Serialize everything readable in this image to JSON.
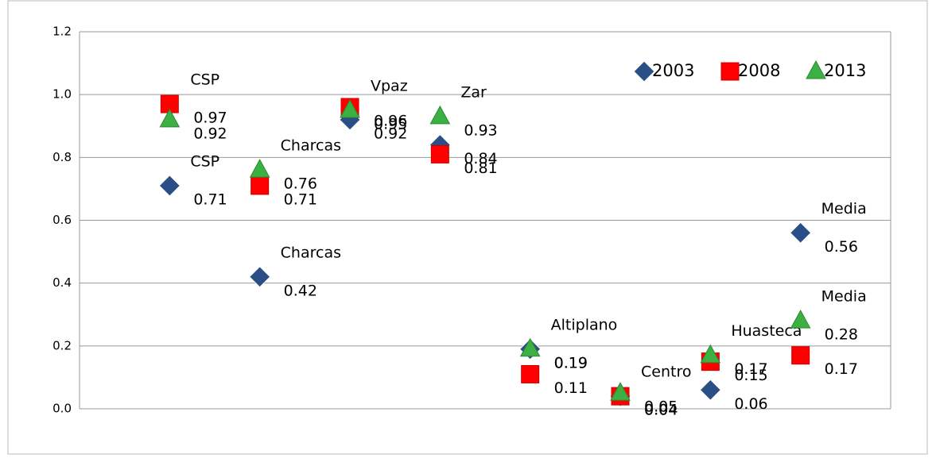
{
  "chart_data": {
    "type": "scatter",
    "categories": [
      null,
      null,
      null,
      null,
      null,
      null,
      null,
      null
    ],
    "ylim": [
      0,
      1.2
    ],
    "yticks": [
      {
        "value": 0,
        "label": "0.0"
      },
      0.2,
      0.4,
      0.6,
      0.8,
      {
        "value": 1,
        "label": "1.0"
      },
      1.2
    ],
    "grid": true,
    "legend": "top-right",
    "series": [
      {
        "name": "2003",
        "color": "#2a4e86",
        "marker": "diamond",
        "values": [
          0.71,
          0.42,
          0.92,
          0.84,
          0.19,
          0.04,
          0.06,
          0.56
        ],
        "labels": [
          "CSP",
          "Charcas",
          null,
          null,
          "Altiplano",
          "Centro",
          null,
          "Media"
        ]
      },
      {
        "name": "2008",
        "color": "#ff0000",
        "marker": "square",
        "values": [
          0.97,
          0.71,
          0.96,
          0.81,
          0.11,
          0.04,
          0.15,
          0.17
        ],
        "labels": [
          "CSP",
          null,
          null,
          null,
          null,
          null,
          null,
          null
        ]
      },
      {
        "name": "2013",
        "color": "#3cb043",
        "marker": "triangle",
        "values": [
          0.92,
          0.76,
          0.95,
          0.93,
          0.19,
          0.05,
          0.17,
          0.28
        ],
        "labels": [
          null,
          "Charcas",
          "Vpaz",
          "Zar",
          null,
          null,
          "Huasteca",
          "Media"
        ]
      }
    ]
  }
}
